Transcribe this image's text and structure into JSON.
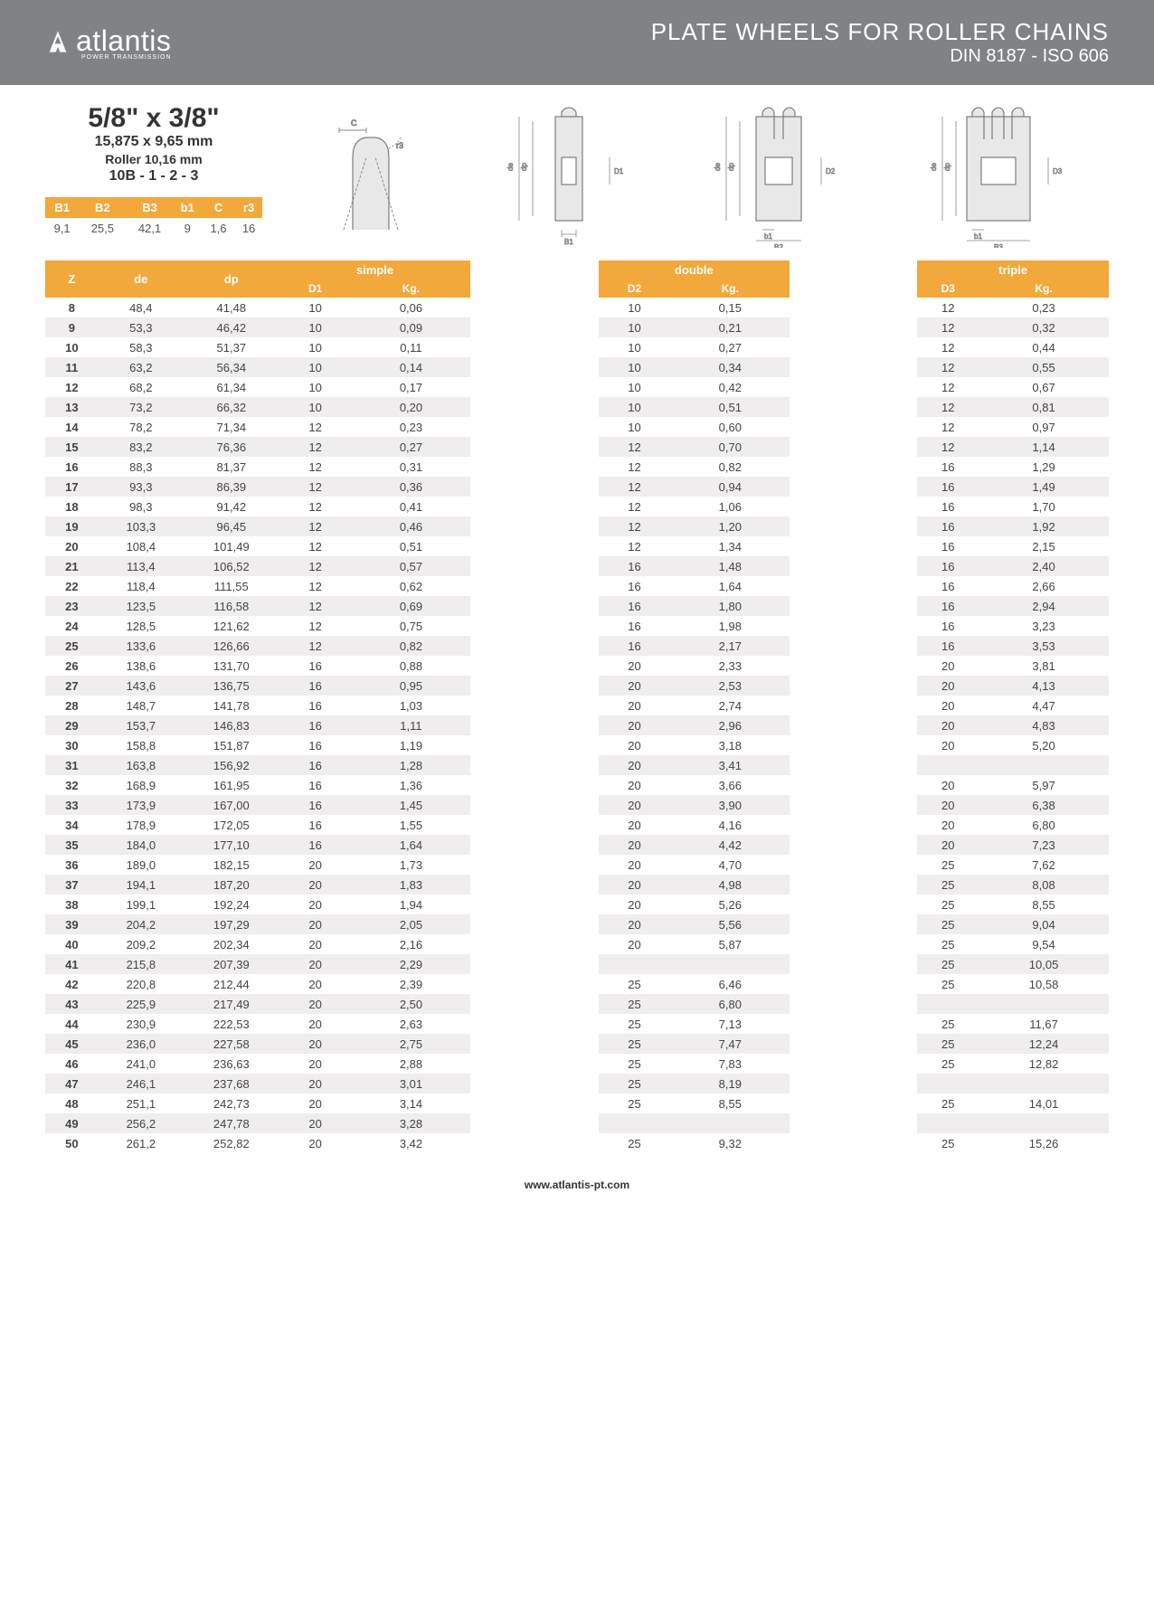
{
  "header": {
    "logo_text": "atlantis",
    "logo_sub": "POWER TRANSMISSION",
    "title": "PLATE WHEELS FOR ROLLER CHAINS",
    "subtitle": "DIN 8187 - ISO 606"
  },
  "spec": {
    "size_big": "5/8\" x 3/8\"",
    "size_mm": "15,875 x 9,65 mm",
    "roller": "Roller 10,16 mm",
    "model": "10B - 1 - 2 - 3",
    "dim_headers": [
      "B1",
      "B2",
      "B3",
      "b1",
      "C",
      "r3"
    ],
    "dim_values": [
      "9,1",
      "25,5",
      "42,1",
      "9",
      "1,6",
      "16"
    ]
  },
  "table": {
    "group_headers": [
      "simple",
      "double",
      "triple"
    ],
    "sub_headers": {
      "z": "Z",
      "de": "de",
      "dp": "dp",
      "d1": "D1",
      "kg1": "Kg.",
      "d2": "D2",
      "kg2": "Kg.",
      "d3": "D3",
      "kg3": "Kg."
    },
    "col_widths_pct": {
      "z": 5,
      "de": 8,
      "dp": 8,
      "d1": 9,
      "kg1": 9,
      "gap": 1.5,
      "d2": 9,
      "kg2": 9,
      "d3": 9,
      "kg3": 9
    },
    "rows": [
      {
        "z": "8",
        "de": "48,4",
        "dp": "41,48",
        "d1": "10",
        "kg1": "0,06",
        "d2": "10",
        "kg2": "0,15",
        "d3": "12",
        "kg3": "0,23"
      },
      {
        "z": "9",
        "de": "53,3",
        "dp": "46,42",
        "d1": "10",
        "kg1": "0,09",
        "d2": "10",
        "kg2": "0,21",
        "d3": "12",
        "kg3": "0,32"
      },
      {
        "z": "10",
        "de": "58,3",
        "dp": "51,37",
        "d1": "10",
        "kg1": "0,11",
        "d2": "10",
        "kg2": "0,27",
        "d3": "12",
        "kg3": "0,44"
      },
      {
        "z": "11",
        "de": "63,2",
        "dp": "56,34",
        "d1": "10",
        "kg1": "0,14",
        "d2": "10",
        "kg2": "0,34",
        "d3": "12",
        "kg3": "0,55"
      },
      {
        "z": "12",
        "de": "68,2",
        "dp": "61,34",
        "d1": "10",
        "kg1": "0,17",
        "d2": "10",
        "kg2": "0,42",
        "d3": "12",
        "kg3": "0,67"
      },
      {
        "z": "13",
        "de": "73,2",
        "dp": "66,32",
        "d1": "10",
        "kg1": "0,20",
        "d2": "10",
        "kg2": "0,51",
        "d3": "12",
        "kg3": "0,81"
      },
      {
        "z": "14",
        "de": "78,2",
        "dp": "71,34",
        "d1": "12",
        "kg1": "0,23",
        "d2": "10",
        "kg2": "0,60",
        "d3": "12",
        "kg3": "0,97"
      },
      {
        "z": "15",
        "de": "83,2",
        "dp": "76,36",
        "d1": "12",
        "kg1": "0,27",
        "d2": "12",
        "kg2": "0,70",
        "d3": "12",
        "kg3": "1,14"
      },
      {
        "z": "16",
        "de": "88,3",
        "dp": "81,37",
        "d1": "12",
        "kg1": "0,31",
        "d2": "12",
        "kg2": "0,82",
        "d3": "16",
        "kg3": "1,29"
      },
      {
        "z": "17",
        "de": "93,3",
        "dp": "86,39",
        "d1": "12",
        "kg1": "0,36",
        "d2": "12",
        "kg2": "0,94",
        "d3": "16",
        "kg3": "1,49"
      },
      {
        "z": "18",
        "de": "98,3",
        "dp": "91,42",
        "d1": "12",
        "kg1": "0,41",
        "d2": "12",
        "kg2": "1,06",
        "d3": "16",
        "kg3": "1,70"
      },
      {
        "z": "19",
        "de": "103,3",
        "dp": "96,45",
        "d1": "12",
        "kg1": "0,46",
        "d2": "12",
        "kg2": "1,20",
        "d3": "16",
        "kg3": "1,92"
      },
      {
        "z": "20",
        "de": "108,4",
        "dp": "101,49",
        "d1": "12",
        "kg1": "0,51",
        "d2": "12",
        "kg2": "1,34",
        "d3": "16",
        "kg3": "2,15"
      },
      {
        "z": "21",
        "de": "113,4",
        "dp": "106,52",
        "d1": "12",
        "kg1": "0,57",
        "d2": "16",
        "kg2": "1,48",
        "d3": "16",
        "kg3": "2,40"
      },
      {
        "z": "22",
        "de": "118,4",
        "dp": "111,55",
        "d1": "12",
        "kg1": "0,62",
        "d2": "16",
        "kg2": "1,64",
        "d3": "16",
        "kg3": "2,66"
      },
      {
        "z": "23",
        "de": "123,5",
        "dp": "116,58",
        "d1": "12",
        "kg1": "0,69",
        "d2": "16",
        "kg2": "1,80",
        "d3": "16",
        "kg3": "2,94"
      },
      {
        "z": "24",
        "de": "128,5",
        "dp": "121,62",
        "d1": "12",
        "kg1": "0,75",
        "d2": "16",
        "kg2": "1,98",
        "d3": "16",
        "kg3": "3,23"
      },
      {
        "z": "25",
        "de": "133,6",
        "dp": "126,66",
        "d1": "12",
        "kg1": "0,82",
        "d2": "16",
        "kg2": "2,17",
        "d3": "16",
        "kg3": "3,53"
      },
      {
        "z": "26",
        "de": "138,6",
        "dp": "131,70",
        "d1": "16",
        "kg1": "0,88",
        "d2": "20",
        "kg2": "2,33",
        "d3": "20",
        "kg3": "3,81"
      },
      {
        "z": "27",
        "de": "143,6",
        "dp": "136,75",
        "d1": "16",
        "kg1": "0,95",
        "d2": "20",
        "kg2": "2,53",
        "d3": "20",
        "kg3": "4,13"
      },
      {
        "z": "28",
        "de": "148,7",
        "dp": "141,78",
        "d1": "16",
        "kg1": "1,03",
        "d2": "20",
        "kg2": "2,74",
        "d3": "20",
        "kg3": "4,47"
      },
      {
        "z": "29",
        "de": "153,7",
        "dp": "146,83",
        "d1": "16",
        "kg1": "1,11",
        "d2": "20",
        "kg2": "2,96",
        "d3": "20",
        "kg3": "4,83"
      },
      {
        "z": "30",
        "de": "158,8",
        "dp": "151,87",
        "d1": "16",
        "kg1": "1,19",
        "d2": "20",
        "kg2": "3,18",
        "d3": "20",
        "kg3": "5,20"
      },
      {
        "z": "31",
        "de": "163,8",
        "dp": "156,92",
        "d1": "16",
        "kg1": "1,28",
        "d2": "20",
        "kg2": "3,41",
        "d3": "",
        "kg3": ""
      },
      {
        "z": "32",
        "de": "168,9",
        "dp": "161,95",
        "d1": "16",
        "kg1": "1,36",
        "d2": "20",
        "kg2": "3,66",
        "d3": "20",
        "kg3": "5,97"
      },
      {
        "z": "33",
        "de": "173,9",
        "dp": "167,00",
        "d1": "16",
        "kg1": "1,45",
        "d2": "20",
        "kg2": "3,90",
        "d3": "20",
        "kg3": "6,38"
      },
      {
        "z": "34",
        "de": "178,9",
        "dp": "172,05",
        "d1": "16",
        "kg1": "1,55",
        "d2": "20",
        "kg2": "4,16",
        "d3": "20",
        "kg3": "6,80"
      },
      {
        "z": "35",
        "de": "184,0",
        "dp": "177,10",
        "d1": "16",
        "kg1": "1,64",
        "d2": "20",
        "kg2": "4,42",
        "d3": "20",
        "kg3": "7,23"
      },
      {
        "z": "36",
        "de": "189,0",
        "dp": "182,15",
        "d1": "20",
        "kg1": "1,73",
        "d2": "20",
        "kg2": "4,70",
        "d3": "25",
        "kg3": "7,62"
      },
      {
        "z": "37",
        "de": "194,1",
        "dp": "187,20",
        "d1": "20",
        "kg1": "1,83",
        "d2": "20",
        "kg2": "4,98",
        "d3": "25",
        "kg3": "8,08"
      },
      {
        "z": "38",
        "de": "199,1",
        "dp": "192,24",
        "d1": "20",
        "kg1": "1,94",
        "d2": "20",
        "kg2": "5,26",
        "d3": "25",
        "kg3": "8,55"
      },
      {
        "z": "39",
        "de": "204,2",
        "dp": "197,29",
        "d1": "20",
        "kg1": "2,05",
        "d2": "20",
        "kg2": "5,56",
        "d3": "25",
        "kg3": "9,04"
      },
      {
        "z": "40",
        "de": "209,2",
        "dp": "202,34",
        "d1": "20",
        "kg1": "2,16",
        "d2": "20",
        "kg2": "5,87",
        "d3": "25",
        "kg3": "9,54"
      },
      {
        "z": "41",
        "de": "215,8",
        "dp": "207,39",
        "d1": "20",
        "kg1": "2,29",
        "d2": "",
        "kg2": "",
        "d3": "25",
        "kg3": "10,05"
      },
      {
        "z": "42",
        "de": "220,8",
        "dp": "212,44",
        "d1": "20",
        "kg1": "2,39",
        "d2": "25",
        "kg2": "6,46",
        "d3": "25",
        "kg3": "10,58"
      },
      {
        "z": "43",
        "de": "225,9",
        "dp": "217,49",
        "d1": "20",
        "kg1": "2,50",
        "d2": "25",
        "kg2": "6,80",
        "d3": "",
        "kg3": ""
      },
      {
        "z": "44",
        "de": "230,9",
        "dp": "222,53",
        "d1": "20",
        "kg1": "2,63",
        "d2": "25",
        "kg2": "7,13",
        "d3": "25",
        "kg3": "11,67"
      },
      {
        "z": "45",
        "de": "236,0",
        "dp": "227,58",
        "d1": "20",
        "kg1": "2,75",
        "d2": "25",
        "kg2": "7,47",
        "d3": "25",
        "kg3": "12,24"
      },
      {
        "z": "46",
        "de": "241,0",
        "dp": "236,63",
        "d1": "20",
        "kg1": "2,88",
        "d2": "25",
        "kg2": "7,83",
        "d3": "25",
        "kg3": "12,82"
      },
      {
        "z": "47",
        "de": "246,1",
        "dp": "237,68",
        "d1": "20",
        "kg1": "3,01",
        "d2": "25",
        "kg2": "8,19",
        "d3": "",
        "kg3": ""
      },
      {
        "z": "48",
        "de": "251,1",
        "dp": "242,73",
        "d1": "20",
        "kg1": "3,14",
        "d2": "25",
        "kg2": "8,55",
        "d3": "25",
        "kg3": "14,01"
      },
      {
        "z": "49",
        "de": "256,2",
        "dp": "247,78",
        "d1": "20",
        "kg1": "3,28",
        "d2": "",
        "kg2": "",
        "d3": "",
        "kg3": ""
      },
      {
        "z": "50",
        "de": "261,2",
        "dp": "252,82",
        "d1": "20",
        "kg1": "3,42",
        "d2": "25",
        "kg2": "9,32",
        "d3": "25",
        "kg3": "15,26"
      }
    ]
  },
  "footer": "www.atlantis-pt.com",
  "colors": {
    "header_bg": "#808285",
    "orange": "#f2a83b",
    "row_alt": "#efedee",
    "text": "#444444"
  }
}
